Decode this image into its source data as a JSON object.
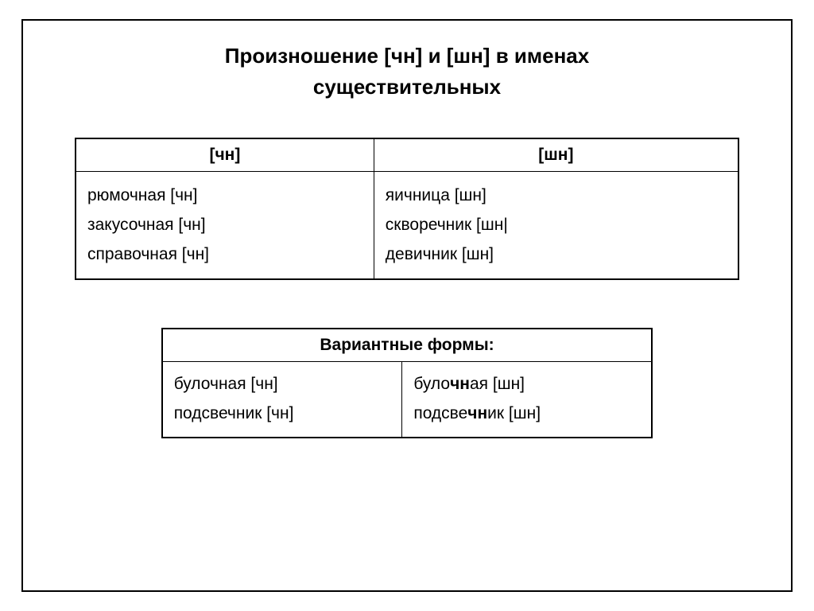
{
  "title_line1": "Произношение [чн] и [шн] в именах",
  "title_line2": "существительных",
  "table1": {
    "header_col1": "[чн]",
    "header_col2": "[шн]",
    "col1_items": [
      "рюмочная [чн]",
      "закусочная [чн]",
      "справочная [чн]"
    ],
    "col2_items": [
      "яичница [шн]",
      "скворечник [шн|",
      "девичник [шн]"
    ]
  },
  "table2": {
    "header": "Вариантные формы:",
    "col1_items": [
      "булочная [чн]",
      "подсвечник [чн]"
    ],
    "col2_items": [
      {
        "pre": "було",
        "bold": "чн",
        "post": "ая [шн]"
      },
      {
        "pre": "подсве",
        "bold": "чн",
        "post": "ик [шн]"
      }
    ]
  },
  "style": {
    "background_color": "#ffffff",
    "border_color": "#000000",
    "text_color": "#000000",
    "title_fontsize": 26,
    "body_fontsize": 21,
    "outer_border_width": 2,
    "table_outer_border_width": 2,
    "table_inner_border_width": 1,
    "table1_col_widths_pct": [
      45,
      55
    ],
    "table2_col_widths_pct": [
      49,
      51
    ],
    "table2_width_pct": 74,
    "font_family": "Arial, sans-serif"
  }
}
